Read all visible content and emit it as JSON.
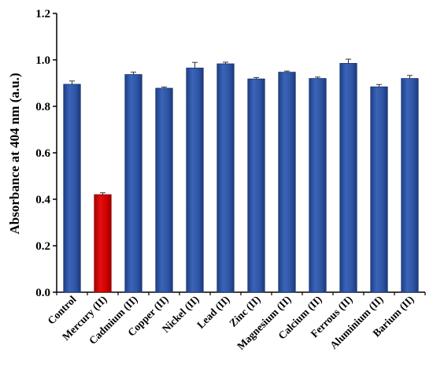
{
  "chart_data": {
    "type": "bar",
    "title": "",
    "xlabel": "",
    "ylabel": "Absorbance at 404 nm (a.u.)",
    "ylim": [
      0,
      1.2
    ],
    "yticks": [
      "0.0",
      "0.2",
      "0.4",
      "0.6",
      "0.8",
      "1.0",
      "1.2"
    ],
    "grid": false,
    "legend": "none",
    "categories": [
      "Control",
      "Mercury (II)",
      "Cadmium (II)",
      "Copper (II)",
      "Nickel (II)",
      "Lead (II)",
      "Zinc (II)",
      "Magnesium (II)",
      "Calcium (II)",
      "Ferrous (II)",
      "Aluminium (II)",
      "Barium (II)"
    ],
    "values": [
      0.895,
      0.42,
      0.937,
      0.878,
      0.965,
      0.983,
      0.918,
      0.947,
      0.92,
      0.985,
      0.884,
      0.92
    ],
    "errors": [
      0.014,
      0.008,
      0.01,
      0.005,
      0.024,
      0.007,
      0.006,
      0.005,
      0.006,
      0.018,
      0.01,
      0.013
    ],
    "colors": {
      "default_bar": "#2f55a4",
      "highlight_bar": "#d40000",
      "highlight_category": "Mercury (II)",
      "axis": "#000000"
    }
  }
}
